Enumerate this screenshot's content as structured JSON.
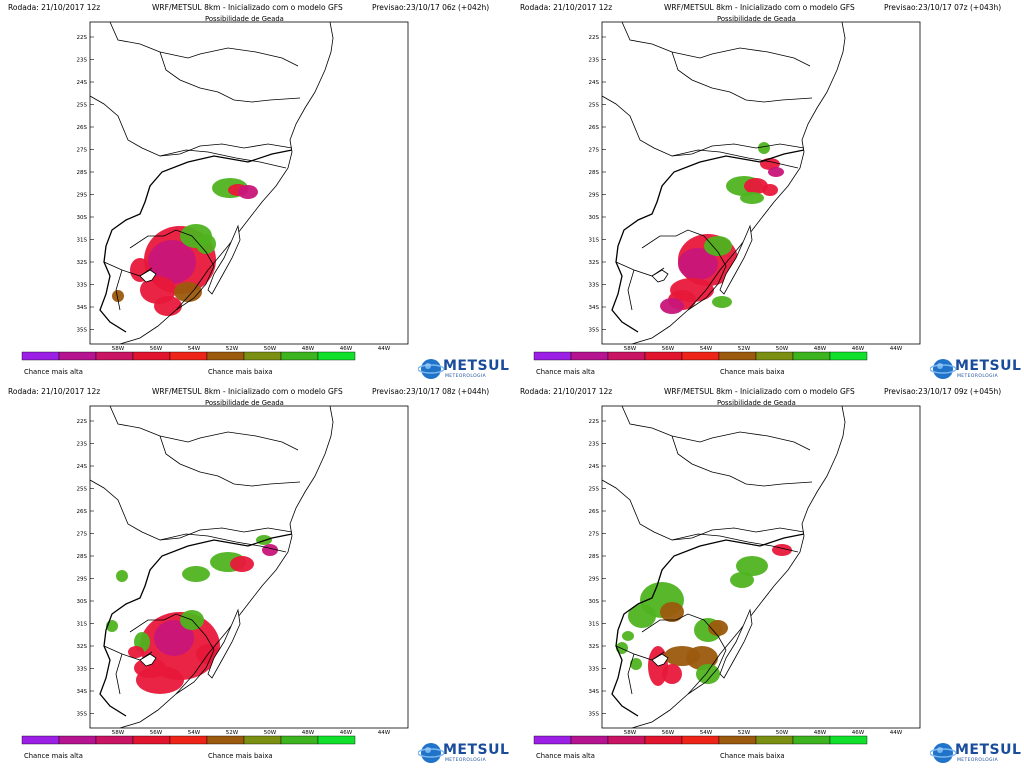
{
  "common": {
    "rodada": "Rodada: 21/10/2017 12z",
    "modelo": "WRF/METSUL 8km - Inicializado com o modelo GFS",
    "subtitulo": "Possibilidade de Geada",
    "chance_alta": "Chance mais alta",
    "chance_baixa": "Chance mais baixa",
    "logo_text": "METSUL",
    "logo_tagline": "METEOROLOGIA",
    "lat_labels": [
      "22S",
      "23S",
      "24S",
      "25S",
      "26S",
      "27S",
      "28S",
      "29S",
      "30S",
      "31S",
      "32S",
      "33S",
      "34S",
      "35S"
    ],
    "lon_labels": [
      "58W",
      "56W",
      "54W",
      "52W",
      "50W",
      "48W",
      "46W",
      "44W"
    ],
    "colorbar_colors": [
      "#9c1fe6",
      "#b5138f",
      "#c81462",
      "#e0142f",
      "#ee2418",
      "#9b5a0d",
      "#7b8f12",
      "#3db31f",
      "#10e02b"
    ],
    "colors": {
      "red": "#e8183a",
      "magenta": "#c8167a",
      "brown": "#9b5a0d",
      "olive": "#6f8f15",
      "green": "#4fb320"
    }
  },
  "panels": [
    {
      "id": "p1",
      "previsao": "Previsao:23/10/17 06z (+042h)"
    },
    {
      "id": "p2",
      "previsao": "Previsao:23/10/17 07z (+043h)"
    },
    {
      "id": "p3",
      "previsao": "Previsao:23/10/17 08z (+044h)"
    },
    {
      "id": "p4",
      "previsao": "Previsao:23/10/17 09z (+045h)"
    }
  ]
}
